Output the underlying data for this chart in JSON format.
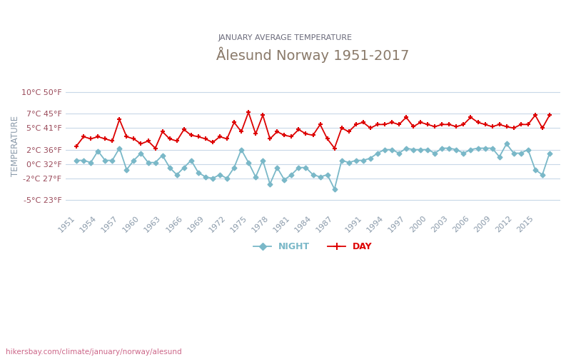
{
  "title": "Ålesund Norway 1951-2017",
  "subtitle": "JANUARY AVERAGE TEMPERATURE",
  "xlabel_url": "hikersbay.com/climate/january/norway/alesund",
  "ylabel": "TEMPERATURE",
  "yticks_c": [
    10,
    7,
    5,
    2,
    0,
    -2,
    -5
  ],
  "yticks_f": [
    50,
    45,
    41,
    36,
    32,
    27,
    23
  ],
  "ylim_c": [
    -6.5,
    11.5
  ],
  "years": [
    1951,
    1952,
    1953,
    1954,
    1955,
    1956,
    1957,
    1958,
    1959,
    1960,
    1961,
    1962,
    1963,
    1964,
    1965,
    1966,
    1967,
    1968,
    1969,
    1970,
    1971,
    1972,
    1973,
    1974,
    1975,
    1976,
    1977,
    1978,
    1979,
    1980,
    1981,
    1982,
    1983,
    1984,
    1985,
    1986,
    1987,
    1988,
    1989,
    1990,
    1991,
    1992,
    1993,
    1994,
    1995,
    1996,
    1997,
    1998,
    1999,
    2000,
    2001,
    2002,
    2003,
    2004,
    2005,
    2006,
    2007,
    2008,
    2009,
    2010,
    2011,
    2012,
    2013,
    2014,
    2015,
    2016,
    2017
  ],
  "day_temps": [
    2.5,
    3.8,
    3.5,
    3.8,
    3.5,
    3.2,
    6.2,
    3.8,
    3.5,
    2.8,
    3.2,
    2.2,
    4.5,
    3.5,
    3.2,
    4.8,
    4.0,
    3.8,
    3.5,
    3.0,
    3.8,
    3.5,
    5.8,
    4.5,
    7.2,
    4.2,
    6.8,
    3.5,
    4.5,
    4.0,
    3.8,
    4.8,
    4.2,
    4.0,
    5.5,
    3.5,
    2.2,
    5.0,
    4.5,
    5.5,
    5.8,
    5.0,
    5.5,
    5.5,
    5.8,
    5.5,
    6.5,
    5.2,
    5.8,
    5.5,
    5.2,
    5.5,
    5.5,
    5.2,
    5.5,
    6.5,
    5.8,
    5.5,
    5.2,
    5.5,
    5.2,
    5.0,
    5.5,
    5.5,
    6.8,
    5.0,
    6.8
  ],
  "night_temps": [
    0.5,
    0.5,
    0.2,
    1.8,
    0.5,
    0.5,
    2.2,
    -0.8,
    0.5,
    1.5,
    0.2,
    0.2,
    1.2,
    -0.5,
    -1.5,
    -0.5,
    0.5,
    -1.2,
    -1.8,
    -2.0,
    -1.5,
    -2.0,
    -0.5,
    2.0,
    0.2,
    -1.8,
    0.5,
    -2.8,
    -0.5,
    -2.2,
    -1.5,
    -0.5,
    -0.5,
    -1.5,
    -1.8,
    -1.5,
    -3.5,
    0.5,
    0.2,
    0.5,
    0.5,
    0.8,
    1.5,
    2.0,
    2.0,
    1.5,
    2.2,
    2.0,
    2.0,
    2.0,
    1.5,
    2.2,
    2.2,
    2.0,
    1.5,
    2.0,
    2.2,
    2.2,
    2.2,
    1.0,
    2.8,
    1.5,
    1.5,
    2.0,
    -0.8,
    -1.5,
    1.5
  ],
  "day_color": "#dd0000",
  "night_color": "#7ab8c8",
  "title_color": "#8a7a6a",
  "subtitle_color": "#6a6a7a",
  "ylabel_color": "#8a9aaa",
  "ytick_color": "#9a4a5a",
  "xtick_color": "#8a9aaa",
  "url_color": "#cc6688",
  "bg_color": "#ffffff",
  "grid_color": "#c8d8e8",
  "legend_night": "NIGHT",
  "legend_day": "DAY",
  "xtick_years": [
    1951,
    1954,
    1957,
    1960,
    1963,
    1966,
    1969,
    1972,
    1975,
    1978,
    1981,
    1984,
    1987,
    1991,
    1994,
    1997,
    2000,
    2003,
    2006,
    2009,
    2012,
    2015
  ]
}
